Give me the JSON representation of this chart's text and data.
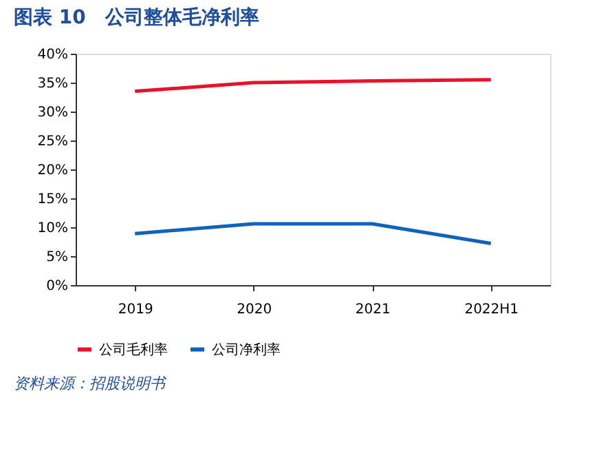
{
  "chart_data": {
    "type": "line",
    "title": "图表 10　公司整体毛净利率",
    "categories": [
      "2019",
      "2020",
      "2021",
      "2022H1"
    ],
    "series": [
      {
        "name": "公司毛利率",
        "color": "#e8132a",
        "values": [
          33.5,
          35.0,
          35.3,
          35.5
        ]
      },
      {
        "name": "公司净利率",
        "color": "#0f63b8",
        "values": [
          8.9,
          10.6,
          10.6,
          7.2
        ]
      }
    ],
    "ylim": [
      0,
      40
    ],
    "yticks": [
      {
        "value": 0,
        "label": "0%"
      },
      {
        "value": 5,
        "label": "5%"
      },
      {
        "value": 10,
        "label": "10%"
      },
      {
        "value": 15,
        "label": "15%"
      },
      {
        "value": 20,
        "label": "20%"
      },
      {
        "value": 25,
        "label": "25%"
      },
      {
        "value": 30,
        "label": "30%"
      },
      {
        "value": 35,
        "label": "35%"
      },
      {
        "value": 40,
        "label": "40%"
      }
    ],
    "grid": false,
    "legend": "bottom",
    "marker": "none",
    "line_style": "solid",
    "annotations": [
      "资料来源：招股说明书"
    ]
  }
}
